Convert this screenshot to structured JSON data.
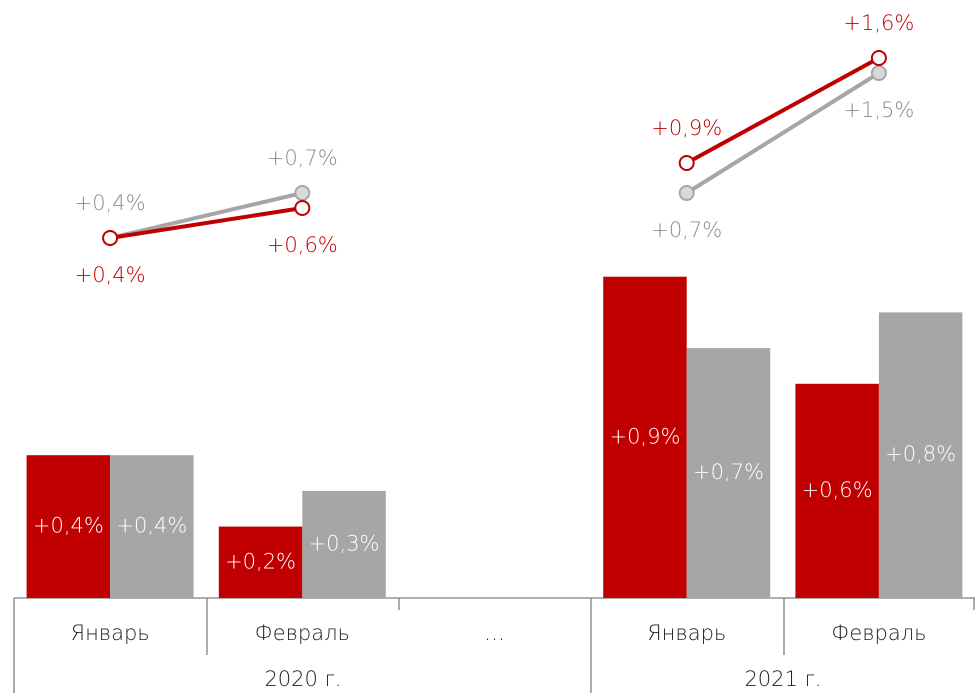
{
  "chart_data": {
    "type": "bar",
    "categories": [
      "Январь",
      "Февраль",
      "…",
      "Январь",
      "Февраль"
    ],
    "groups": [
      "2020 г.",
      "2021 г."
    ],
    "series": [
      {
        "color": "#c00000",
        "values": [
          0.4,
          0.2,
          null,
          0.9,
          0.6
        ],
        "value_labels": [
          "+0,4%",
          "+0,2%",
          null,
          "+0,9%",
          "+0,6%"
        ]
      },
      {
        "color": "#a6a6a6",
        "values": [
          0.4,
          0.3,
          null,
          0.7,
          0.8
        ],
        "value_labels": [
          "+0,4%",
          "+0,3%",
          null,
          "+0,7%",
          "+0,8%"
        ]
      }
    ],
    "line_series": [
      {
        "color": "#c00000",
        "marker_fill": "#ffffff",
        "values": [
          0.4,
          0.6,
          null,
          0.9,
          1.6
        ],
        "value_labels": [
          "+0,4%",
          "+0,6%",
          null,
          "+0,9%",
          "+1,6%"
        ]
      },
      {
        "color": "#a6a6a6",
        "marker_fill": "#d9d9d9",
        "values": [
          0.4,
          0.7,
          null,
          0.7,
          1.5
        ],
        "value_labels": [
          "+0,4%",
          "+0,7%",
          null,
          "+0,7%",
          "+1,5%"
        ]
      }
    ]
  }
}
